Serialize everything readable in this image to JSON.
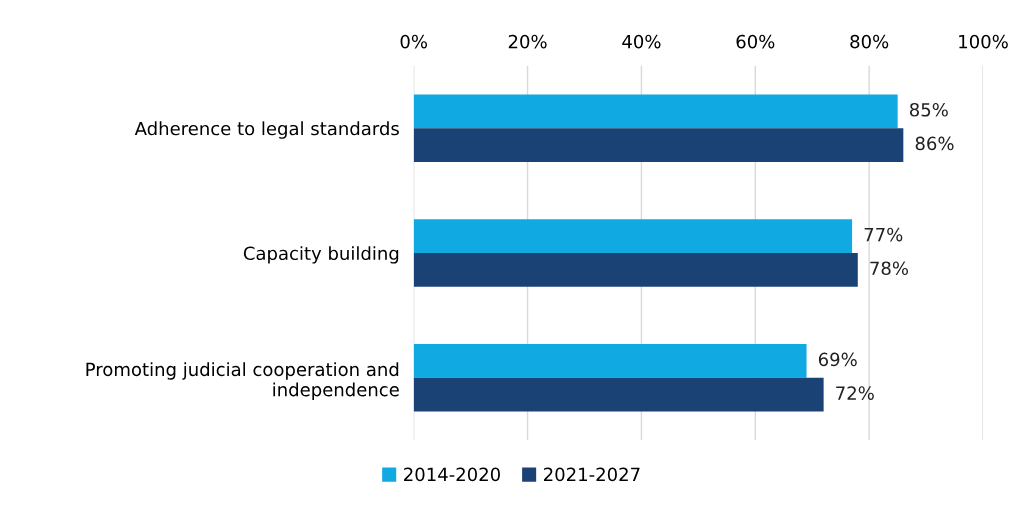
{
  "chart_data": {
    "type": "bar",
    "orientation": "horizontal",
    "categories": [
      "Adherence to legal standards",
      "Capacity building",
      "Promoting judicial cooperation and\nindependence"
    ],
    "series": [
      {
        "name": "2014-2020",
        "color": "#10a9e1",
        "values": [
          85,
          77,
          69
        ],
        "value_labels": [
          "85%",
          "77%",
          "69%"
        ]
      },
      {
        "name": "2021-2027",
        "color": "#1b4274",
        "values": [
          86,
          78,
          72
        ],
        "value_labels": [
          "86%",
          "78%",
          "72%"
        ]
      }
    ],
    "xlim": [
      0,
      100
    ],
    "xticks": [
      {
        "value": 0,
        "label": "0%"
      },
      {
        "value": 20,
        "label": "20%"
      },
      {
        "value": 40,
        "label": "40%"
      },
      {
        "value": 60,
        "label": "60%"
      },
      {
        "value": 80,
        "label": "80%"
      },
      {
        "value": 100,
        "label": "100%"
      }
    ],
    "grid": "x",
    "legend": "bottom"
  }
}
